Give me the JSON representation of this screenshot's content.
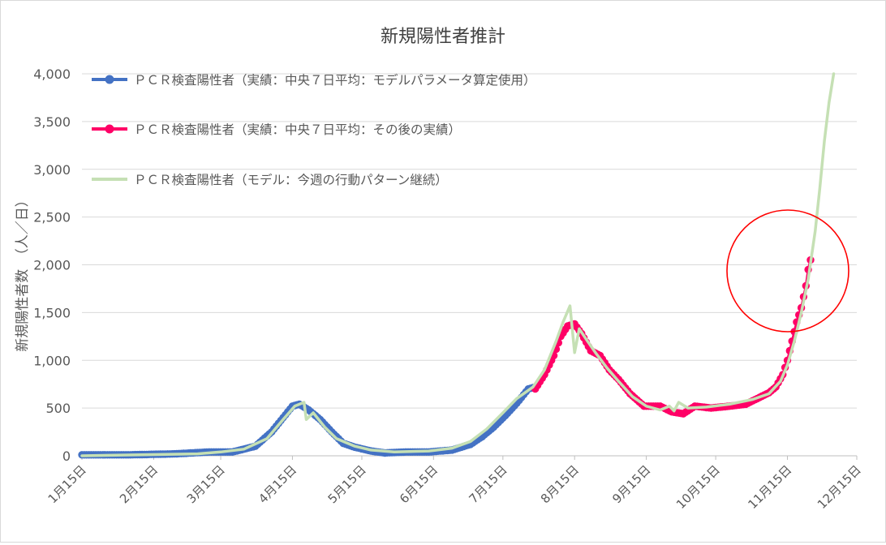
{
  "chart_data": {
    "type": "line",
    "title": "新規陽性者推計",
    "ylabel": "新規陽性者数　（人／日）",
    "xlabel": "",
    "ylim": [
      0,
      4000
    ],
    "yticks": [
      0,
      500,
      1000,
      1500,
      2000,
      2500,
      3000,
      3500,
      4000
    ],
    "ytick_labels": [
      "0",
      "500",
      "1,000",
      "1,500",
      "2,000",
      "2,500",
      "3,000",
      "3,500",
      "4,000"
    ],
    "x_range": [
      "1月15日",
      "12月15日"
    ],
    "xticks": [
      {
        "day": 0,
        "label": "1月15日"
      },
      {
        "day": 31,
        "label": "2月15日"
      },
      {
        "day": 60,
        "label": "3月15日"
      },
      {
        "day": 91,
        "label": "4月15日"
      },
      {
        "day": 121,
        "label": "5月15日"
      },
      {
        "day": 152,
        "label": "6月15日"
      },
      {
        "day": 182,
        "label": "7月15日"
      },
      {
        "day": 213,
        "label": "8月15日"
      },
      {
        "day": 244,
        "label": "9月15日"
      },
      {
        "day": 274,
        "label": "10月15日"
      },
      {
        "day": 305,
        "label": "11月15日"
      },
      {
        "day": 335,
        "label": "12月15日"
      }
    ],
    "grid": true,
    "legend_position": "top-left",
    "series": [
      {
        "name": "ＰＣＲ検査陽性者（実績：中央７日平均：モデルパラメータ算定使用）",
        "color": "#4472c4",
        "marker": "circle",
        "points": [
          [
            0,
            10
          ],
          [
            20,
            10
          ],
          [
            40,
            20
          ],
          [
            55,
            40
          ],
          [
            65,
            40
          ],
          [
            75,
            100
          ],
          [
            82,
            250
          ],
          [
            87,
            400
          ],
          [
            91,
            520
          ],
          [
            94,
            540
          ],
          [
            98,
            480
          ],
          [
            103,
            380
          ],
          [
            108,
            250
          ],
          [
            113,
            130
          ],
          [
            118,
            90
          ],
          [
            125,
            50
          ],
          [
            131,
            30
          ],
          [
            140,
            40
          ],
          [
            150,
            40
          ],
          [
            160,
            60
          ],
          [
            168,
            120
          ],
          [
            173,
            200
          ],
          [
            178,
            300
          ],
          [
            183,
            420
          ],
          [
            188,
            550
          ],
          [
            193,
            700
          ],
          [
            196,
            720
          ]
        ]
      },
      {
        "name": "ＰＣＲ検査陽性者（実績：中央７日平均：その後の実績）",
        "color": "#ff0066",
        "marker": "circle",
        "points": [
          [
            196,
            700
          ],
          [
            200,
            850
          ],
          [
            204,
            1050
          ],
          [
            207,
            1250
          ],
          [
            210,
            1360
          ],
          [
            213,
            1380
          ],
          [
            216,
            1280
          ],
          [
            220,
            1100
          ],
          [
            224,
            1050
          ],
          [
            228,
            900
          ],
          [
            232,
            800
          ],
          [
            237,
            650
          ],
          [
            243,
            520
          ],
          [
            250,
            520
          ],
          [
            255,
            460
          ],
          [
            260,
            440
          ],
          [
            265,
            520
          ],
          [
            272,
            500
          ],
          [
            280,
            520
          ],
          [
            287,
            540
          ],
          [
            292,
            600
          ],
          [
            297,
            660
          ],
          [
            300,
            720
          ],
          [
            303,
            850
          ],
          [
            305,
            1000
          ],
          [
            307,
            1200
          ],
          [
            309,
            1400
          ],
          [
            311,
            1550
          ],
          [
            313,
            1780
          ],
          [
            314,
            1950
          ],
          [
            315,
            2050
          ]
        ]
      },
      {
        "name": "ＰＣＲ検査陽性者（モデル：今週の行動パターン継続）",
        "color": "#c5e0b4",
        "marker": "none",
        "points": [
          [
            0,
            0
          ],
          [
            50,
            20
          ],
          [
            60,
            40
          ],
          [
            70,
            70
          ],
          [
            80,
            180
          ],
          [
            87,
            380
          ],
          [
            92,
            520
          ],
          [
            96,
            560
          ],
          [
            97,
            380
          ],
          [
            100,
            450
          ],
          [
            105,
            300
          ],
          [
            110,
            180
          ],
          [
            118,
            100
          ],
          [
            125,
            60
          ],
          [
            135,
            40
          ],
          [
            150,
            50
          ],
          [
            160,
            80
          ],
          [
            168,
            150
          ],
          [
            175,
            280
          ],
          [
            182,
            450
          ],
          [
            188,
            600
          ],
          [
            195,
            720
          ],
          [
            200,
            900
          ],
          [
            205,
            1200
          ],
          [
            208,
            1400
          ],
          [
            211,
            1570
          ],
          [
            213,
            1080
          ],
          [
            215,
            1330
          ],
          [
            218,
            1220
          ],
          [
            222,
            1080
          ],
          [
            227,
            920
          ],
          [
            232,
            780
          ],
          [
            238,
            620
          ],
          [
            244,
            520
          ],
          [
            250,
            480
          ],
          [
            254,
            520
          ],
          [
            256,
            470
          ],
          [
            258,
            560
          ],
          [
            262,
            500
          ],
          [
            270,
            510
          ],
          [
            280,
            540
          ],
          [
            290,
            590
          ],
          [
            297,
            650
          ],
          [
            302,
            780
          ],
          [
            305,
            950
          ],
          [
            308,
            1200
          ],
          [
            311,
            1500
          ],
          [
            314,
            1850
          ],
          [
            317,
            2350
          ],
          [
            319,
            2800
          ],
          [
            321,
            3300
          ],
          [
            323,
            3700
          ],
          [
            325,
            4000
          ]
        ]
      }
    ],
    "annotation": {
      "type": "circle",
      "color": "#ff0000",
      "around": "11月15日 peak"
    }
  }
}
